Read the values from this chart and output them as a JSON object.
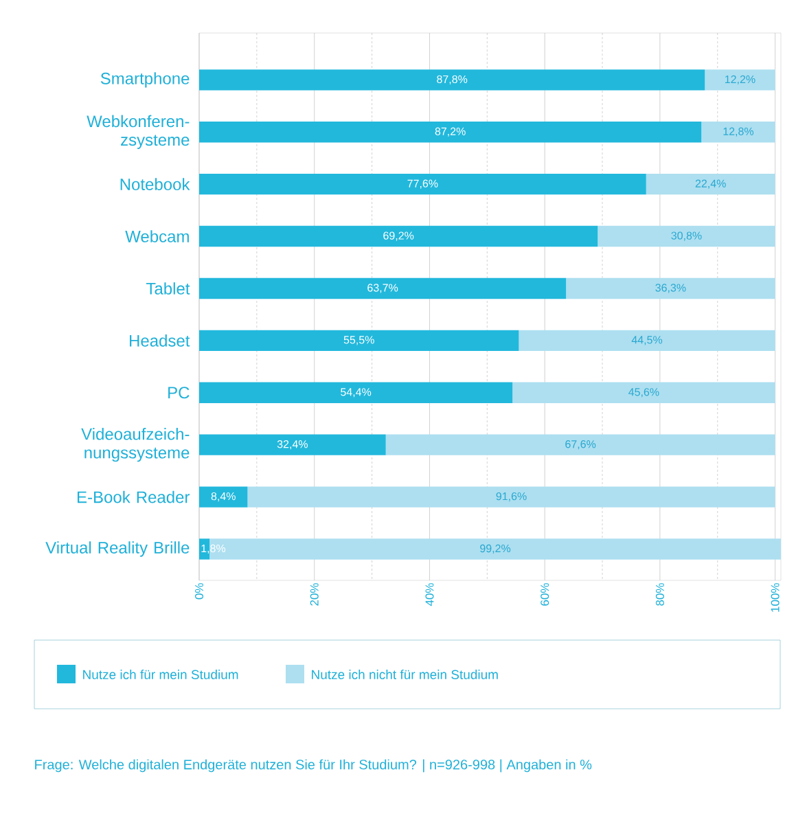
{
  "chart_data": {
    "type": "bar",
    "orientation": "horizontal",
    "stacked": true,
    "categories": [
      "Smartphone",
      "Webkonferen-zsysteme",
      "Notebook",
      "Webcam",
      "Tablet",
      "Headset",
      "PC",
      "Videoaufzeich-nungssysteme",
      "E-Book Reader",
      "Virtual Reality Brille"
    ],
    "series": [
      {
        "name": "Nutze ich für mein Studium",
        "color": "#22b8dc",
        "values": [
          87.8,
          87.2,
          77.6,
          69.2,
          63.7,
          55.5,
          54.4,
          32.4,
          8.4,
          1.8
        ],
        "value_labels": [
          "87,8%",
          "87,2%",
          "77,6%",
          "69,2%",
          "63,7%",
          "55,5%",
          "54,4%",
          "32,4%",
          "8,4%",
          "1,8%"
        ]
      },
      {
        "name": "Nutze ich nicht für mein Studium",
        "color": "#addff0",
        "values": [
          12.2,
          12.8,
          22.4,
          30.8,
          36.3,
          44.5,
          45.6,
          67.6,
          91.6,
          99.2
        ],
        "value_labels": [
          "12,2%",
          "12,8%",
          "22,4%",
          "30,8%",
          "36,3%",
          "44,5%",
          "45,6%",
          "67,6%",
          "91,6%",
          "99,2%"
        ]
      }
    ],
    "xlim": [
      0,
      101
    ],
    "xticks": [
      {
        "value": 0,
        "label": "0%"
      },
      {
        "value": 10,
        "label": null
      },
      {
        "value": 20,
        "label": "20%"
      },
      {
        "value": 30,
        "label": null
      },
      {
        "value": 40,
        "label": "40%"
      },
      {
        "value": 50,
        "label": null
      },
      {
        "value": 60,
        "label": "60%"
      },
      {
        "value": 70,
        "label": null
      },
      {
        "value": 80,
        "label": "80%"
      },
      {
        "value": 90,
        "label": null
      },
      {
        "value": 100,
        "label": "100%"
      }
    ],
    "grid": "x",
    "legend": "bottom",
    "annotations": [
      "Frage: Welche digitalen Endgeräte nutzen Sie für Ihr Studium? | n=926-998 | Angaben in %"
    ]
  }
}
